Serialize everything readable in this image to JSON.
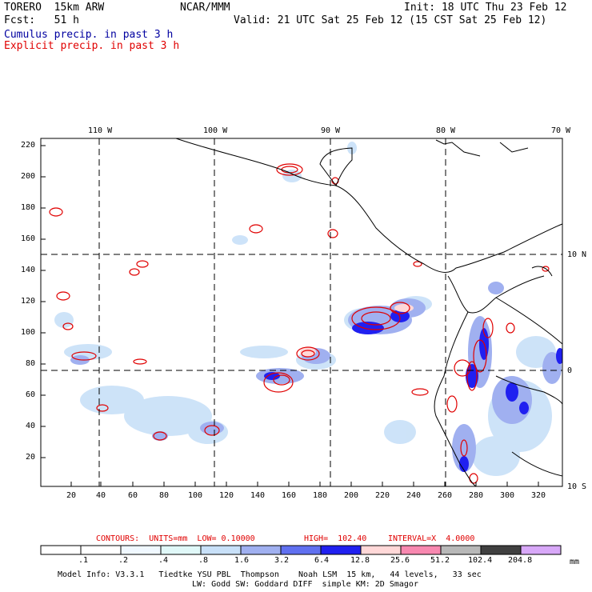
{
  "header": {
    "model": "TORERO  15km ARW",
    "org": "NCAR/MMM",
    "init": "Init: 18 UTC Thu 23 Feb 12",
    "fcst": "Fcst:   51 h",
    "valid": "Valid: 21 UTC Sat 25 Feb 12 (15 CST Sat 25 Feb 12)",
    "cumulus_label": "Cumulus precip. in past 3 h",
    "explicit_label": "Explicit precip. in past 3 h",
    "cumulus_color": "#0000a0",
    "explicit_color": "#e00000"
  },
  "map": {
    "lon_labels": [
      "110 W",
      "100 W",
      "90 W",
      "80 W",
      "70 W"
    ],
    "lat_labels": [
      "10 N",
      "0",
      "10 S"
    ],
    "y_ticks": [
      "220",
      "200",
      "180",
      "160",
      "140",
      "120",
      "100",
      "80",
      "60",
      "40",
      "20"
    ],
    "x_ticks": [
      "20",
      "40",
      "60",
      "80",
      "100",
      "120",
      "140",
      "160",
      "180",
      "200",
      "220",
      "240",
      "260",
      "280",
      "300",
      "320"
    ]
  },
  "contours_line": {
    "contours": "CONTOURS:  UNITS=mm  LOW= 0.10000",
    "high": "HIGH=  102.40",
    "interval": "INTERVAL=X  4.0000"
  },
  "colorbar": {
    "units": "mm",
    "ticks": [
      ".1",
      ".2",
      ".4",
      ".8",
      "1.6",
      "3.2",
      "6.4",
      "12.8",
      "25.6",
      "51.2",
      "102.4",
      "204.8"
    ],
    "colors": [
      "#ffffff",
      "#ffffff",
      "#f0f8ff",
      "#e0f8f8",
      "#c8e0f8",
      "#a0b0f0",
      "#6070f0",
      "#2020f0",
      "#ffd8d8",
      "#f888b0",
      "#b8b8b8",
      "#404040",
      "#d8a8f8"
    ]
  },
  "footer": {
    "line1": "Model Info: V3.3.1   Tiedtke YSU PBL  Thompson    Noah LSM  15 km,   44 levels,   33 sec",
    "line2": "LW: Godd SW: Goddard DIFF  simple KM: 2D Smagor"
  }
}
